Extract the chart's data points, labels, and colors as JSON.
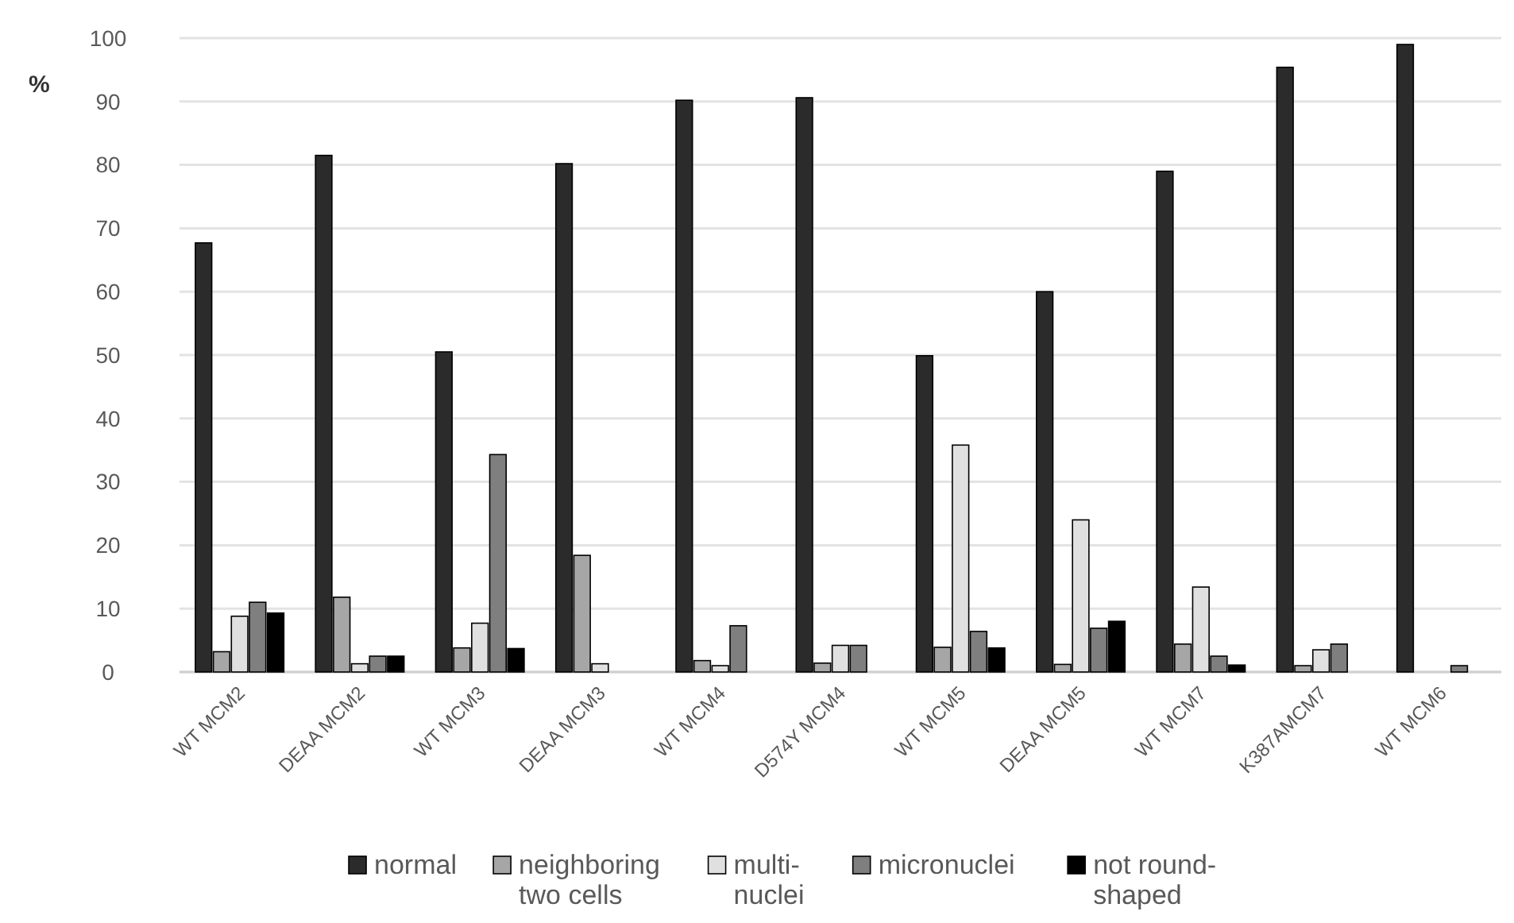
{
  "chart_data": {
    "type": "bar",
    "ylabel": "%",
    "categories": [
      "WT MCM2",
      "DEAA MCM2",
      "WT MCM3",
      "DEAA MCM3",
      "WT MCM4",
      "D574Y MCM4",
      "WT MCM5",
      "DEAA MCM5",
      "WT MCM7",
      "K387AMCM7",
      "WT MCM6"
    ],
    "series": [
      {
        "name": "normal",
        "color": "#2b2b2b",
        "values": [
          67.7,
          81.5,
          50.5,
          80.2,
          90.2,
          90.6,
          49.9,
          60.0,
          79.0,
          95.4,
          99.0
        ]
      },
      {
        "name": "neighboring two cells",
        "color": "#a6a6a6",
        "values": [
          3.2,
          11.8,
          3.8,
          18.4,
          1.8,
          1.4,
          3.9,
          1.2,
          4.4,
          1.0,
          null
        ]
      },
      {
        "name": "multi-nuclei",
        "color": "#e0e0e0",
        "values": [
          8.8,
          1.3,
          7.7,
          1.3,
          1.0,
          4.2,
          35.8,
          24.0,
          13.4,
          3.5,
          null
        ]
      },
      {
        "name": "micronuclei",
        "color": "#7f7f7f",
        "values": [
          11.0,
          2.5,
          34.3,
          null,
          7.3,
          4.2,
          6.4,
          6.9,
          2.5,
          4.4,
          1.0
        ]
      },
      {
        "name": "not round-shaped",
        "color": "#000000",
        "values": [
          9.3,
          2.5,
          3.7,
          null,
          null,
          null,
          3.8,
          8.0,
          1.1,
          null,
          null
        ]
      }
    ],
    "ylim": [
      0,
      100
    ],
    "yticks": [
      0,
      10,
      20,
      30,
      40,
      50,
      60,
      70,
      80,
      90,
      100
    ],
    "grid": "y",
    "legend": "bottom"
  }
}
